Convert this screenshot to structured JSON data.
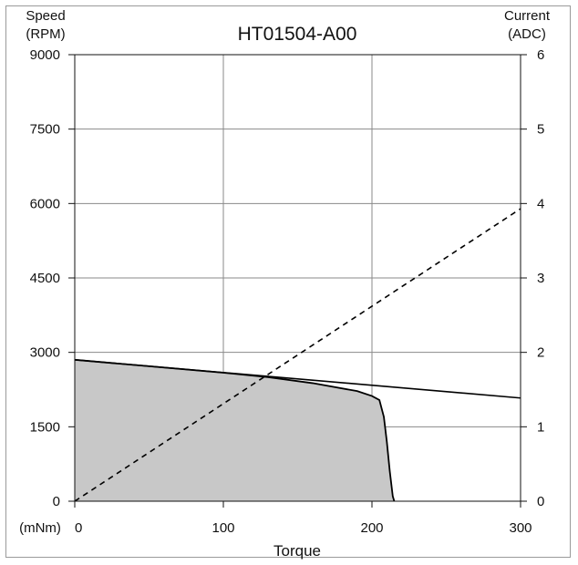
{
  "chart_data": {
    "type": "line",
    "title": "HT01504-A00",
    "xlabel": "Torque",
    "xunit": "(mNm)",
    "ylabel_left": [
      "Speed",
      "(RPM)"
    ],
    "ylabel_right": [
      "Current",
      "(ADC)"
    ],
    "xlim": [
      0,
      300
    ],
    "ylim_left": [
      0,
      9000
    ],
    "ylim_right": [
      0,
      6
    ],
    "xticks": [
      0,
      100,
      200,
      300
    ],
    "yticks_left": [
      0,
      1500,
      3000,
      4500,
      6000,
      7500,
      9000
    ],
    "yticks_right": [
      0,
      1,
      2,
      3,
      4,
      5,
      6
    ],
    "grid": true,
    "series": [
      {
        "kind": "area",
        "axis": "left",
        "color": "#c8c8c8",
        "x": [
          0,
          50,
          100,
          130,
          160,
          190,
          200,
          205,
          208,
          210,
          212,
          214,
          215
        ],
        "y": [
          2850,
          2720,
          2590,
          2500,
          2380,
          2220,
          2120,
          2040,
          1700,
          1200,
          600,
          100,
          0
        ]
      },
      {
        "kind": "line",
        "axis": "left",
        "color": "#000000",
        "dash": "solid",
        "x": [
          0,
          300
        ],
        "y": [
          2850,
          2080
        ]
      },
      {
        "kind": "line",
        "axis": "right",
        "color": "#000000",
        "dash": "dashed",
        "x": [
          0,
          300
        ],
        "y": [
          0,
          3.93
        ]
      }
    ]
  }
}
